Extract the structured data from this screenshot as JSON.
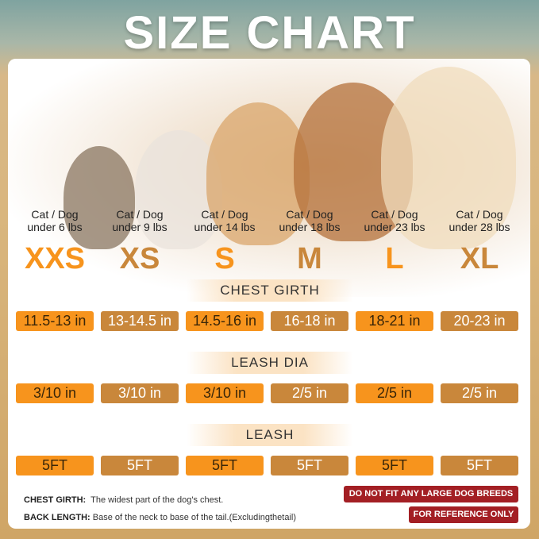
{
  "title": "SIZE CHART",
  "colors": {
    "orange": "#f7941d",
    "brown": "#c9873b",
    "badge": "#a31f24"
  },
  "sizes": [
    {
      "label": "XXS",
      "weight_line1": "Cat / Dog",
      "weight_line2": "under 6 lbs",
      "chest": "11.5-13 in",
      "leash_dia": "3/10 in",
      "leash": "5FT",
      "color": "#f7941d"
    },
    {
      "label": "XS",
      "weight_line1": "Cat / Dog",
      "weight_line2": "under 9 lbs",
      "chest": "13-14.5 in",
      "leash_dia": "3/10 in",
      "leash": "5FT",
      "color": "#c9873b"
    },
    {
      "label": "S",
      "weight_line1": "Cat / Dog",
      "weight_line2": "under 14 lbs",
      "chest": "14.5-16 in",
      "leash_dia": "3/10 in",
      "leash": "5FT",
      "color": "#f7941d"
    },
    {
      "label": "M",
      "weight_line1": "Cat / Dog",
      "weight_line2": "under 18 lbs",
      "chest": "16-18 in",
      "leash_dia": "2/5 in",
      "leash": "5FT",
      "color": "#c9873b"
    },
    {
      "label": "L",
      "weight_line1": "Cat / Dog",
      "weight_line2": "under 23 lbs",
      "chest": "18-21 in",
      "leash_dia": "2/5 in",
      "leash": "5FT",
      "color": "#f7941d"
    },
    {
      "label": "XL",
      "weight_line1": "Cat / Dog",
      "weight_line2": "under 28 lbs",
      "chest": "20-23 in",
      "leash_dia": "2/5 in",
      "leash": "5FT",
      "color": "#c9873b"
    }
  ],
  "sections": {
    "chest": "CHEST GIRTH",
    "leash_dia": "LEASH DIA",
    "leash": "LEASH"
  },
  "notes": [
    {
      "term": "CHEST GIRTH:",
      "desc": "The widest part of the dog's chest."
    },
    {
      "term": "BACK LENGTH:",
      "desc": "Base of the neck to base of the tail.(Excludingthetail)"
    }
  ],
  "badges": [
    "DO NOT FIT ANY LARGE DOG BREEDS",
    "FOR REFERENCE ONLY"
  ]
}
